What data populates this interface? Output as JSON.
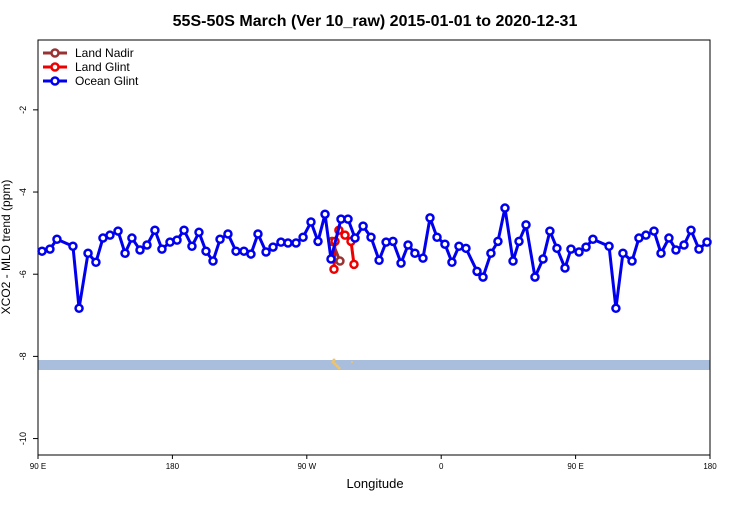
{
  "chart_data": {
    "type": "line",
    "title": "55S-50S March (Ver 10_raw)   2015-01-01 to 2020-12-31",
    "x_label": "Longitude",
    "y_label": "XCO2 - MLO trend (ppm)",
    "xlim": [
      90,
      540
    ],
    "ylim": [
      -10.4,
      -0.3
    ],
    "xticks": [
      {
        "value": 90,
        "label": "90 E"
      },
      {
        "value": 180,
        "label": "180"
      },
      {
        "value": 270,
        "label": "90 W"
      },
      {
        "value": 360,
        "label": "0"
      },
      {
        "value": 450,
        "label": "90 E"
      },
      {
        "value": 540,
        "label": "180"
      }
    ],
    "yticks": [
      -10,
      -8,
      -6,
      -4,
      -2
    ],
    "legend": "top-left",
    "series": [
      {
        "name": "Land Nadir",
        "color": "#993333",
        "x": [
          286.9,
          292.2
        ],
        "values": [
          -5.2,
          -5.68
        ]
      },
      {
        "name": "Land Glint",
        "color": "#ee0000",
        "x": [
          288.2,
          288.9,
          291.5,
          295.6,
          299.6,
          301.6
        ],
        "values": [
          -5.88,
          -5.2,
          -4.93,
          -5.05,
          -5.2,
          -5.76
        ]
      },
      {
        "name": "Ocean Glint",
        "color": "#0000ee",
        "x": [
          92.7,
          98,
          102.7,
          113.4,
          117.5,
          123.5,
          128.8,
          133.5,
          138.2,
          143.6,
          148.3,
          152.9,
          158.3,
          163,
          168.3,
          173,
          178.4,
          183.1,
          187.8,
          193.1,
          197.8,
          202.5,
          207.2,
          211.9,
          217.2,
          222.6,
          227.9,
          232.6,
          237.3,
          242.7,
          247.4,
          252.7,
          257.4,
          262.8,
          267.5,
          272.8,
          277.5,
          282.2,
          286.2,
          292.9,
          297.6,
          302.3,
          307.7,
          313,
          318.4,
          323.1,
          327.7,
          333.1,
          337.8,
          342.4,
          347.8,
          352.5,
          357.2,
          362.5,
          367.2,
          371.9,
          376.6,
          384,
          388,
          393.3,
          398,
          402.7,
          408.1,
          412.1,
          416.8,
          422.8,
          428.2,
          432.8,
          437.5,
          442.9,
          446.9,
          452.3,
          457,
          461.6,
          472.4,
          477,
          481.7,
          487.8,
          492.4,
          497.1,
          502.5,
          507.2,
          512.5,
          517.2,
          522.6,
          527.3,
          532.6,
          538
        ],
        "values": [
          -5.44,
          -5.39,
          -5.15,
          -5.32,
          -6.83,
          -5.49,
          -5.71,
          -5.12,
          -5.05,
          -4.95,
          -5.49,
          -5.12,
          -5.41,
          -5.29,
          -4.93,
          -5.39,
          -5.22,
          -5.17,
          -4.93,
          -5.32,
          -4.98,
          -5.44,
          -5.68,
          -5.15,
          -5.02,
          -5.44,
          -5.44,
          -5.51,
          -5.02,
          -5.46,
          -5.34,
          -5.22,
          -5.24,
          -5.24,
          -5.1,
          -4.73,
          -5.2,
          -4.54,
          -5.63,
          -4.66,
          -4.66,
          -5.12,
          -4.83,
          -5.1,
          -5.66,
          -5.22,
          -5.2,
          -5.73,
          -5.29,
          -5.49,
          -5.61,
          -4.63,
          -5.1,
          -5.27,
          -5.71,
          -5.32,
          -5.37,
          -5.93,
          -6.07,
          -5.49,
          -5.2,
          -4.39,
          -5.68,
          -5.2,
          -4.8,
          -6.07,
          -5.63,
          -4.95,
          -5.37,
          -5.85,
          -5.39,
          -5.46,
          -5.34,
          -5.15,
          -5.32,
          -6.83,
          -5.49,
          -5.68,
          -5.12,
          -5.05,
          -4.95,
          -5.49,
          -5.12,
          -5.41,
          -5.29,
          -4.93,
          -5.39,
          -5.22
        ]
      }
    ]
  }
}
